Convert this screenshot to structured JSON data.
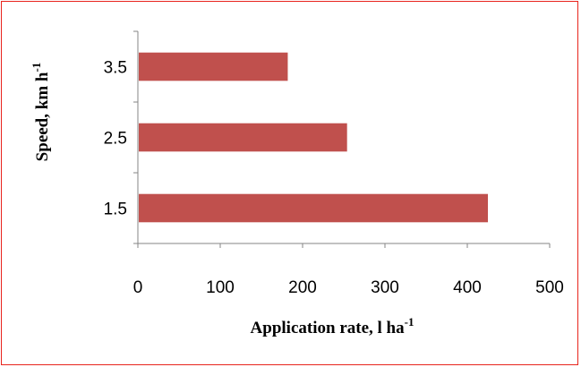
{
  "chart_data": {
    "type": "bar",
    "orientation": "horizontal",
    "categories": [
      "1.5",
      "2.5",
      "3.5"
    ],
    "values": [
      425,
      254,
      182
    ],
    "xlabel": "Application rate, l ha",
    "xlabel_sup": "-1",
    "ylabel": "Speed, km h",
    "ylabel_sup": "-1",
    "xlim": [
      0,
      500
    ],
    "xticks": [
      "0",
      "100",
      "200",
      "300",
      "400",
      "500"
    ],
    "grid": false,
    "legend": "none",
    "bar_color": "#c0504d",
    "frame_color": "#e8241c"
  }
}
